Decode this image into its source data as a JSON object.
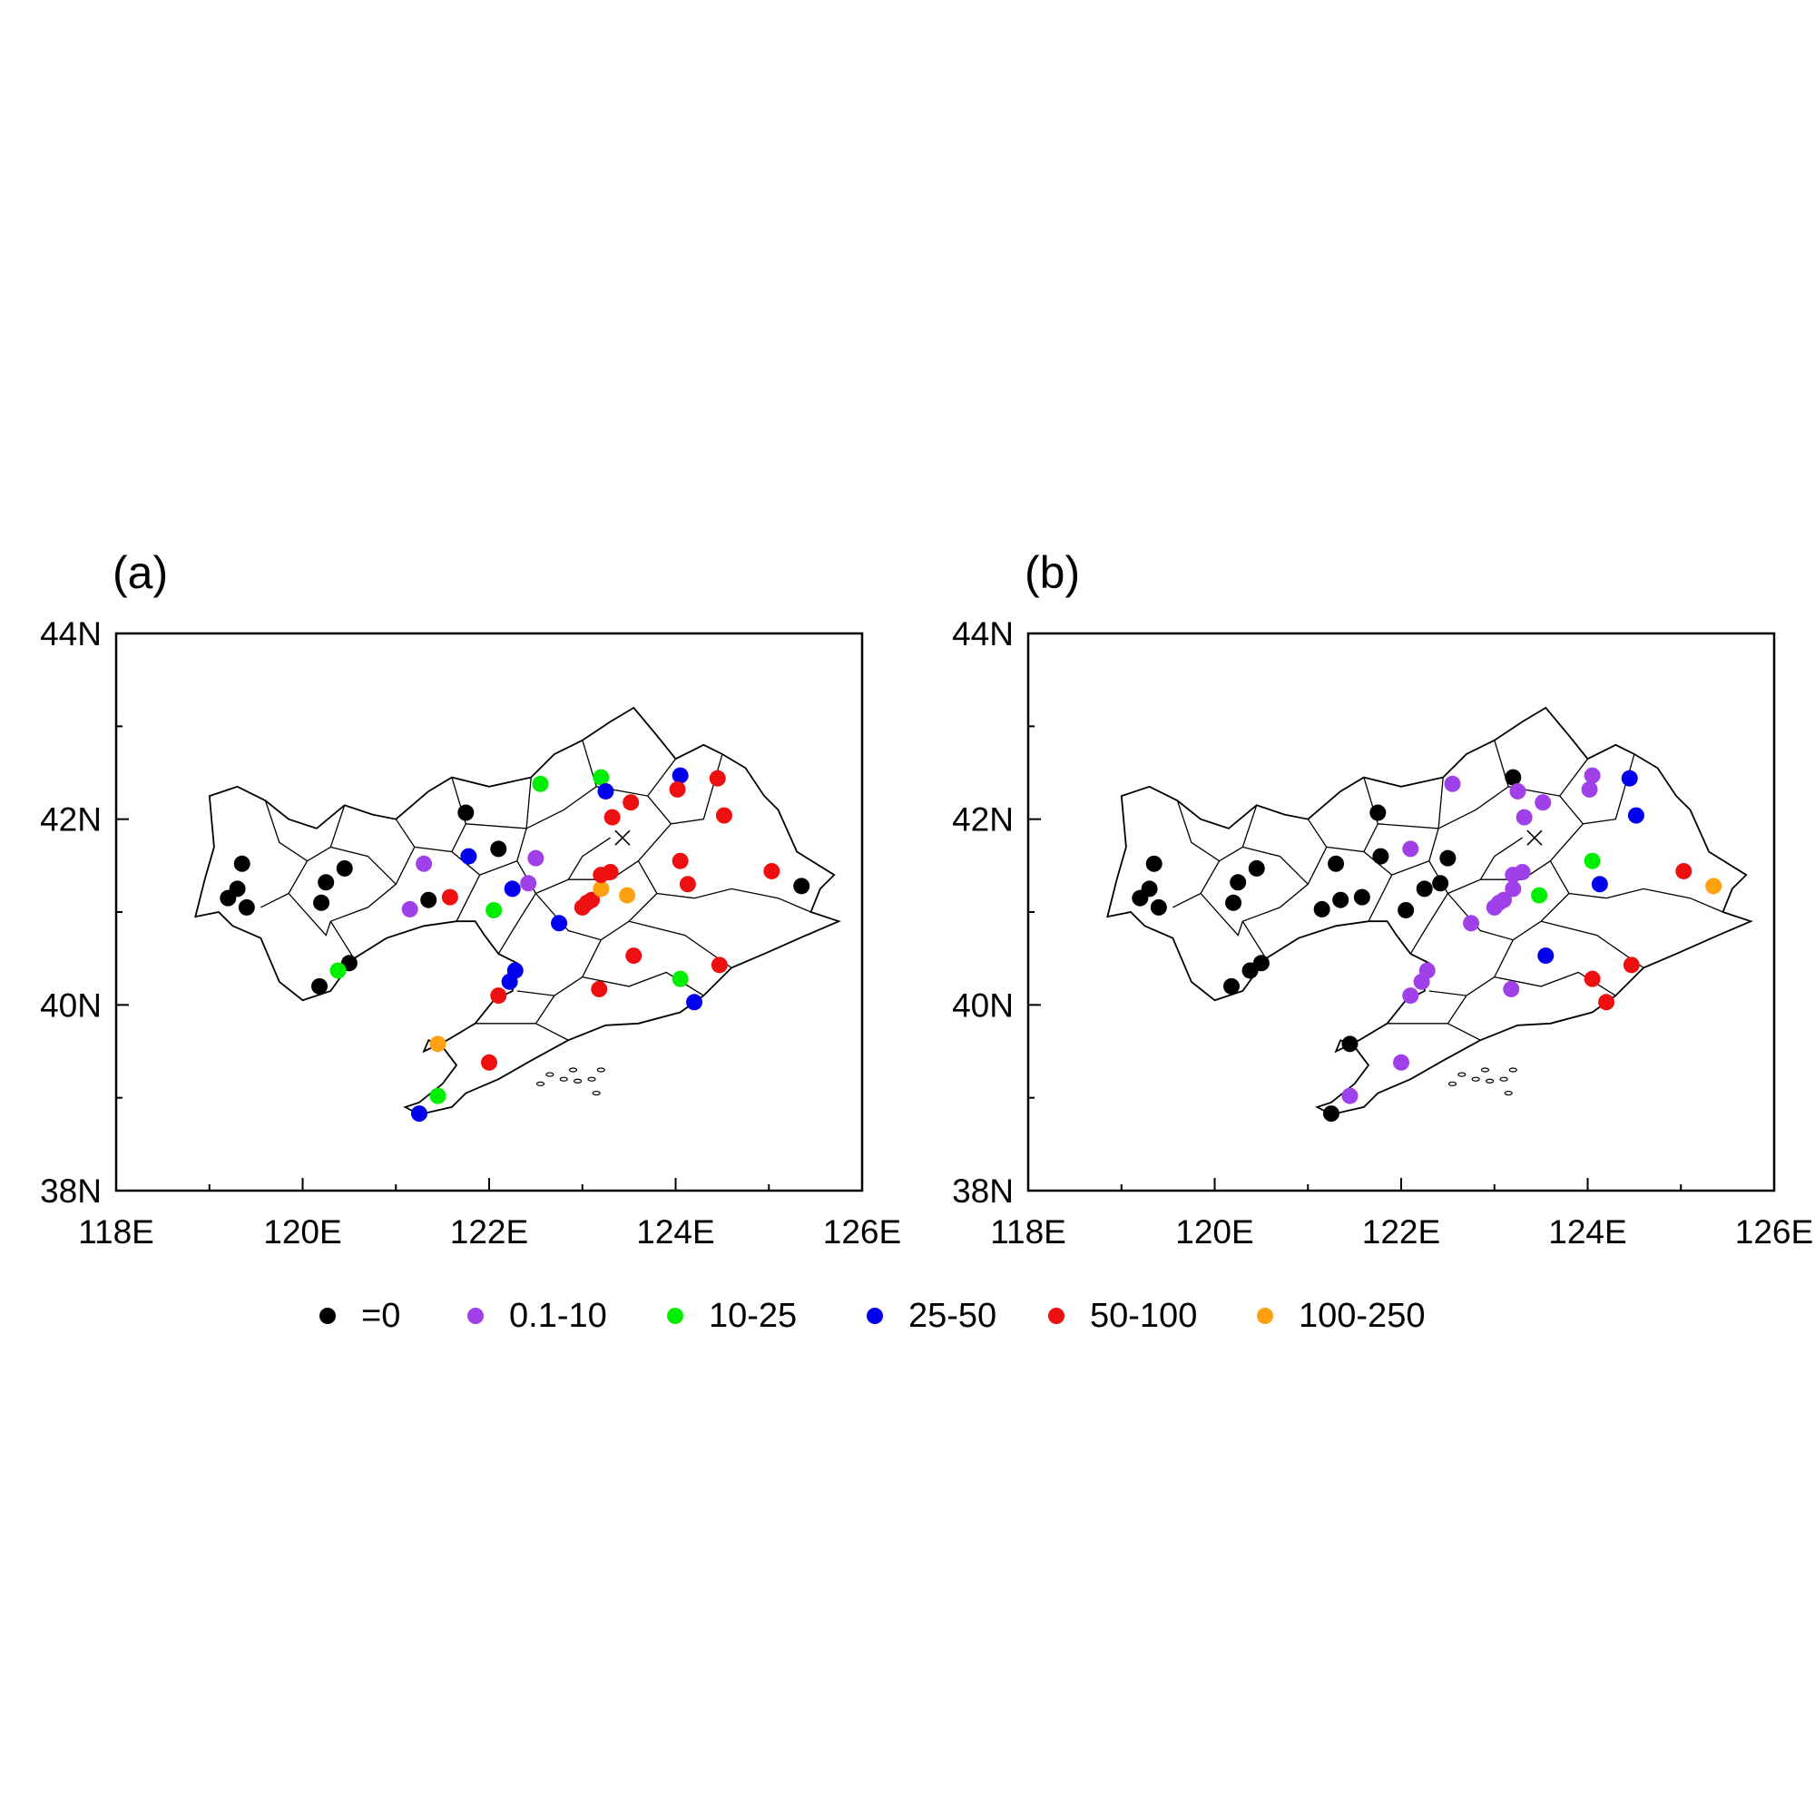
{
  "panels": [
    {
      "label": "(a)",
      "stations": [
        {
          "lon": 119.2,
          "lat": 41.15,
          "cls": 0
        },
        {
          "lon": 119.3,
          "lat": 41.25,
          "cls": 0
        },
        {
          "lon": 119.35,
          "lat": 41.52,
          "cls": 0
        },
        {
          "lon": 119.4,
          "lat": 41.05,
          "cls": 0
        },
        {
          "lon": 120.2,
          "lat": 41.1,
          "cls": 0
        },
        {
          "lon": 120.25,
          "lat": 41.32,
          "cls": 0
        },
        {
          "lon": 120.45,
          "lat": 41.47,
          "cls": 0
        },
        {
          "lon": 120.5,
          "lat": 40.45,
          "cls": 0
        },
        {
          "lon": 120.18,
          "lat": 40.2,
          "cls": 0
        },
        {
          "lon": 120.38,
          "lat": 40.37,
          "cls": 2
        },
        {
          "lon": 121.15,
          "lat": 41.03,
          "cls": 1
        },
        {
          "lon": 121.3,
          "lat": 41.52,
          "cls": 1
        },
        {
          "lon": 121.35,
          "lat": 41.13,
          "cls": 0
        },
        {
          "lon": 121.58,
          "lat": 41.16,
          "cls": 4
        },
        {
          "lon": 121.75,
          "lat": 42.07,
          "cls": 0
        },
        {
          "lon": 121.78,
          "lat": 41.6,
          "cls": 3
        },
        {
          "lon": 122.05,
          "lat": 41.02,
          "cls": 2
        },
        {
          "lon": 122.1,
          "lat": 41.68,
          "cls": 0
        },
        {
          "lon": 122.25,
          "lat": 41.25,
          "cls": 3
        },
        {
          "lon": 122.42,
          "lat": 41.31,
          "cls": 1
        },
        {
          "lon": 122.5,
          "lat": 41.58,
          "cls": 1
        },
        {
          "lon": 122.55,
          "lat": 42.38,
          "cls": 2
        },
        {
          "lon": 122.28,
          "lat": 40.37,
          "cls": 3
        },
        {
          "lon": 122.22,
          "lat": 40.25,
          "cls": 3
        },
        {
          "lon": 122.1,
          "lat": 40.1,
          "cls": 4
        },
        {
          "lon": 122.75,
          "lat": 40.88,
          "cls": 3
        },
        {
          "lon": 123.0,
          "lat": 41.05,
          "cls": 4
        },
        {
          "lon": 123.05,
          "lat": 41.1,
          "cls": 4
        },
        {
          "lon": 123.1,
          "lat": 41.13,
          "cls": 4
        },
        {
          "lon": 123.2,
          "lat": 41.25,
          "cls": 5
        },
        {
          "lon": 123.2,
          "lat": 41.4,
          "cls": 4
        },
        {
          "lon": 123.3,
          "lat": 41.43,
          "cls": 4
        },
        {
          "lon": 123.2,
          "lat": 42.45,
          "cls": 2
        },
        {
          "lon": 123.25,
          "lat": 42.3,
          "cls": 3
        },
        {
          "lon": 123.32,
          "lat": 42.02,
          "cls": 4
        },
        {
          "lon": 123.52,
          "lat": 42.18,
          "cls": 4
        },
        {
          "lon": 123.48,
          "lat": 41.18,
          "cls": 5
        },
        {
          "lon": 123.55,
          "lat": 40.53,
          "cls": 4
        },
        {
          "lon": 123.18,
          "lat": 40.17,
          "cls": 4
        },
        {
          "lon": 124.05,
          "lat": 42.47,
          "cls": 3
        },
        {
          "lon": 124.02,
          "lat": 42.32,
          "cls": 4
        },
        {
          "lon": 124.45,
          "lat": 42.44,
          "cls": 4
        },
        {
          "lon": 124.52,
          "lat": 42.04,
          "cls": 4
        },
        {
          "lon": 124.05,
          "lat": 41.55,
          "cls": 4
        },
        {
          "lon": 124.13,
          "lat": 41.3,
          "cls": 4
        },
        {
          "lon": 124.05,
          "lat": 40.28,
          "cls": 2
        },
        {
          "lon": 124.2,
          "lat": 40.03,
          "cls": 3
        },
        {
          "lon": 124.47,
          "lat": 40.43,
          "cls": 4
        },
        {
          "lon": 125.03,
          "lat": 41.44,
          "cls": 4
        },
        {
          "lon": 125.35,
          "lat": 41.28,
          "cls": 0
        },
        {
          "lon": 121.45,
          "lat": 39.58,
          "cls": 5
        },
        {
          "lon": 122.0,
          "lat": 39.38,
          "cls": 4
        },
        {
          "lon": 121.45,
          "lat": 39.02,
          "cls": 2
        },
        {
          "lon": 121.25,
          "lat": 38.83,
          "cls": 3
        }
      ]
    },
    {
      "label": "(b)",
      "stations": [
        {
          "lon": 119.2,
          "lat": 41.15,
          "cls": 0
        },
        {
          "lon": 119.3,
          "lat": 41.25,
          "cls": 0
        },
        {
          "lon": 119.35,
          "lat": 41.52,
          "cls": 0
        },
        {
          "lon": 119.4,
          "lat": 41.05,
          "cls": 0
        },
        {
          "lon": 120.2,
          "lat": 41.1,
          "cls": 0
        },
        {
          "lon": 120.25,
          "lat": 41.32,
          "cls": 0
        },
        {
          "lon": 120.45,
          "lat": 41.47,
          "cls": 0
        },
        {
          "lon": 120.5,
          "lat": 40.45,
          "cls": 0
        },
        {
          "lon": 120.18,
          "lat": 40.2,
          "cls": 0
        },
        {
          "lon": 120.38,
          "lat": 40.37,
          "cls": 0
        },
        {
          "lon": 121.15,
          "lat": 41.03,
          "cls": 0
        },
        {
          "lon": 121.3,
          "lat": 41.52,
          "cls": 0
        },
        {
          "lon": 121.35,
          "lat": 41.13,
          "cls": 0
        },
        {
          "lon": 121.58,
          "lat": 41.16,
          "cls": 0
        },
        {
          "lon": 121.75,
          "lat": 42.07,
          "cls": 0
        },
        {
          "lon": 121.78,
          "lat": 41.6,
          "cls": 0
        },
        {
          "lon": 122.05,
          "lat": 41.02,
          "cls": 0
        },
        {
          "lon": 122.1,
          "lat": 41.68,
          "cls": 1
        },
        {
          "lon": 122.25,
          "lat": 41.25,
          "cls": 0
        },
        {
          "lon": 122.42,
          "lat": 41.31,
          "cls": 0
        },
        {
          "lon": 122.5,
          "lat": 41.58,
          "cls": 0
        },
        {
          "lon": 122.55,
          "lat": 42.38,
          "cls": 1
        },
        {
          "lon": 122.28,
          "lat": 40.37,
          "cls": 1
        },
        {
          "lon": 122.22,
          "lat": 40.25,
          "cls": 1
        },
        {
          "lon": 122.1,
          "lat": 40.1,
          "cls": 1
        },
        {
          "lon": 122.75,
          "lat": 40.88,
          "cls": 1
        },
        {
          "lon": 123.0,
          "lat": 41.05,
          "cls": 1
        },
        {
          "lon": 123.05,
          "lat": 41.1,
          "cls": 1
        },
        {
          "lon": 123.1,
          "lat": 41.13,
          "cls": 1
        },
        {
          "lon": 123.2,
          "lat": 41.25,
          "cls": 1
        },
        {
          "lon": 123.2,
          "lat": 41.4,
          "cls": 1
        },
        {
          "lon": 123.3,
          "lat": 41.43,
          "cls": 1
        },
        {
          "lon": 123.2,
          "lat": 42.45,
          "cls": 0
        },
        {
          "lon": 123.25,
          "lat": 42.3,
          "cls": 1
        },
        {
          "lon": 123.32,
          "lat": 42.02,
          "cls": 1
        },
        {
          "lon": 123.52,
          "lat": 42.18,
          "cls": 1
        },
        {
          "lon": 123.48,
          "lat": 41.18,
          "cls": 2
        },
        {
          "lon": 123.55,
          "lat": 40.53,
          "cls": 3
        },
        {
          "lon": 123.18,
          "lat": 40.17,
          "cls": 1
        },
        {
          "lon": 124.05,
          "lat": 42.47,
          "cls": 1
        },
        {
          "lon": 124.02,
          "lat": 42.32,
          "cls": 1
        },
        {
          "lon": 124.45,
          "lat": 42.44,
          "cls": 3
        },
        {
          "lon": 124.52,
          "lat": 42.04,
          "cls": 3
        },
        {
          "lon": 124.05,
          "lat": 41.55,
          "cls": 2
        },
        {
          "lon": 124.13,
          "lat": 41.3,
          "cls": 3
        },
        {
          "lon": 124.05,
          "lat": 40.28,
          "cls": 4
        },
        {
          "lon": 124.2,
          "lat": 40.03,
          "cls": 4
        },
        {
          "lon": 124.47,
          "lat": 40.43,
          "cls": 4
        },
        {
          "lon": 125.03,
          "lat": 41.44,
          "cls": 4
        },
        {
          "lon": 125.35,
          "lat": 41.28,
          "cls": 5
        },
        {
          "lon": 121.45,
          "lat": 39.58,
          "cls": 0
        },
        {
          "lon": 122.0,
          "lat": 39.38,
          "cls": 1
        },
        {
          "lon": 121.45,
          "lat": 39.02,
          "cls": 1
        },
        {
          "lon": 121.25,
          "lat": 38.83,
          "cls": 0
        }
      ]
    }
  ],
  "axes": {
    "x_ticks": [
      118,
      120,
      122,
      124,
      126
    ],
    "x_tick_labels": [
      "118E",
      "120E",
      "122E",
      "124E",
      "126E"
    ],
    "y_ticks": [
      38,
      40,
      42,
      44
    ],
    "y_tick_labels": [
      "38N",
      "40N",
      "42N",
      "44N"
    ],
    "xlim": [
      118,
      126
    ],
    "ylim": [
      38,
      44
    ]
  },
  "cross_marker": {
    "lon": 123.43,
    "lat": 41.8
  },
  "legend": [
    {
      "label": "=0",
      "color": "#000000"
    },
    {
      "label": "0.1-10",
      "color": "#a040e8"
    },
    {
      "label": "10-25",
      "color": "#00ee00"
    },
    {
      "label": "25-50",
      "color": "#0000ee"
    },
    {
      "label": "50-100",
      "color": "#ee1010"
    },
    {
      "label": "100-250",
      "color": "#ffa010"
    }
  ]
}
